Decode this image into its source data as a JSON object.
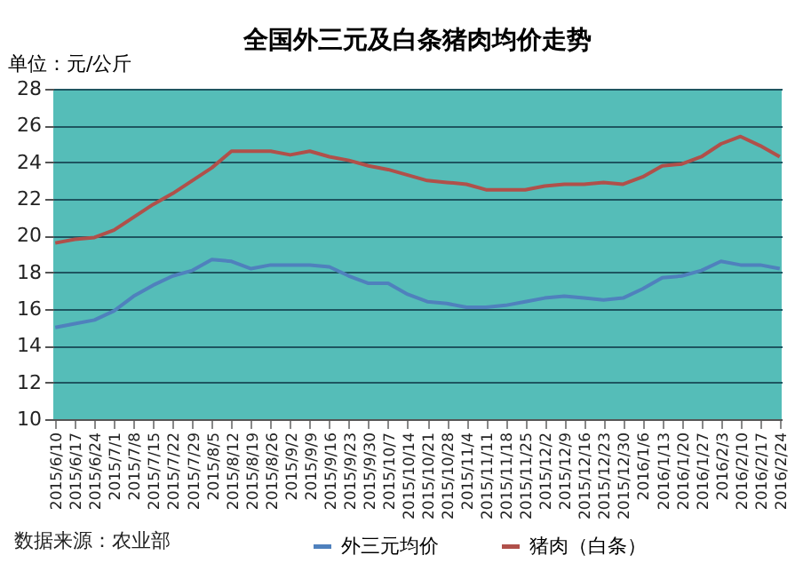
{
  "chart_data": {
    "type": "line",
    "title": "全国外三元及白条猪肉均价走势",
    "ylabel": "单位：元/公斤",
    "categories": [
      "2015/6/10",
      "2015/6/17",
      "2015/6/24",
      "2015/7/1",
      "2015/7/8",
      "2015/7/15",
      "2015/7/22",
      "2015/7/29",
      "2015/8/5",
      "2015/8/12",
      "2015/8/19",
      "2015/8/26",
      "2015/9/2",
      "2015/9/9",
      "2015/9/16",
      "2015/9/23",
      "2015/9/30",
      "2015/10/7",
      "2015/10/14",
      "2015/10/21",
      "2015/10/28",
      "2015/11/4",
      "2015/11/11",
      "2015/11/18",
      "2015/11/25",
      "2015/12/2",
      "2015/12/9",
      "2015/12/16",
      "2015/12/23",
      "2015/12/30",
      "2016/1/6",
      "2016/1/13",
      "2016/1/20",
      "2016/1/27",
      "2016/2/3",
      "2016/2/10",
      "2016/2/17",
      "2016/2/24"
    ],
    "series": [
      {
        "name": "外三元均价",
        "color": "#4f81bd",
        "values": [
          15.0,
          15.2,
          15.4,
          15.9,
          16.7,
          17.3,
          17.8,
          18.1,
          18.7,
          18.6,
          18.2,
          18.4,
          18.4,
          18.4,
          18.3,
          17.8,
          17.4,
          17.4,
          16.8,
          16.4,
          16.3,
          16.1,
          16.1,
          16.2,
          16.4,
          16.6,
          16.7,
          16.6,
          16.5,
          16.6,
          17.1,
          17.7,
          17.8,
          18.1,
          18.6,
          18.4,
          18.4,
          18.2
        ]
      },
      {
        "name": "猪肉（白条）",
        "color": "#b0504a",
        "values": [
          19.6,
          19.8,
          19.9,
          20.3,
          21.0,
          21.7,
          22.3,
          23.0,
          23.7,
          24.6,
          24.6,
          24.6,
          24.4,
          24.6,
          24.3,
          24.1,
          23.8,
          23.6,
          23.3,
          23.0,
          22.9,
          22.8,
          22.5,
          22.5,
          22.5,
          22.7,
          22.8,
          22.8,
          22.9,
          22.8,
          23.2,
          23.8,
          23.9,
          24.3,
          25.0,
          25.4,
          24.9,
          24.3
        ]
      }
    ],
    "ylim": [
      10,
      28
    ],
    "yticks": [
      10,
      12,
      14,
      16,
      18,
      20,
      22,
      24,
      26,
      28
    ],
    "grid": "y",
    "legend": "bottom",
    "marker": "none",
    "line_style": "solid",
    "annotations": [
      "数据来源：农业部"
    ]
  }
}
